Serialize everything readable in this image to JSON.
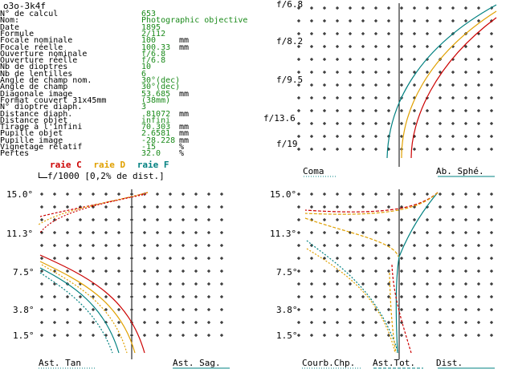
{
  "title": "o3o-3k4f",
  "parameters": [
    {
      "label": "N° de calcul",
      "value": "653",
      "unit": ""
    },
    {
      "label": "Nom:",
      "value": "Photographic objective",
      "unit": ""
    },
    {
      "label": "Date",
      "value": "1895",
      "unit": ""
    },
    {
      "label": "Formule",
      "value": "2/112",
      "unit": ""
    },
    {
      "label": "Focale nominale",
      "value": "100",
      "unit": "mm"
    },
    {
      "label": "Focale réelle",
      "value": "100.33",
      "unit": "mm"
    },
    {
      "label": "Ouverture nominale",
      "value": "f/6.8",
      "unit": ""
    },
    {
      "label": "Ouverture réelle",
      "value": "f/6.8",
      "unit": ""
    },
    {
      "label": "Nb de dioptres",
      "value": "10",
      "unit": ""
    },
    {
      "label": "Nb de lentilles",
      "value": "6",
      "unit": ""
    },
    {
      "label": "Angle de champ nom.",
      "value": "30°(dec)",
      "unit": ""
    },
    {
      "label": "Angle de champ",
      "value": "30°(dec)",
      "unit": ""
    },
    {
      "label": "Diagonale image",
      "value": "53.685",
      "unit": "mm"
    },
    {
      "label": "Format couvert 31x45mm",
      "value": "(38mm)",
      "unit": ""
    },
    {
      "label": "N° dioptre diaph.",
      "value": "3",
      "unit": ""
    },
    {
      "label": "Distance diaph.",
      "value": ".81072",
      "unit": "mm"
    },
    {
      "label": "Distance objet",
      "value": "infini",
      "unit": ""
    },
    {
      "label": "Tirage à l'infini",
      "value": "70.303",
      "unit": "mm"
    },
    {
      "label": "Pupille objet",
      "value": "2.6581",
      "unit": "mm"
    },
    {
      "label": "Pupille image",
      "value": "-28.228",
      "unit": "mm"
    },
    {
      "label": "Vignetage relatif",
      "value": "-15",
      "unit": "%"
    },
    {
      "label": "Pertes",
      "value": "32.0",
      "unit": "%"
    }
  ],
  "legend": {
    "raie_c": "raie C",
    "raie_d": "raie D",
    "raie_f": "raie F",
    "scale": "f/1000 [0,2% de dist.]"
  },
  "colors": {
    "raie_c": "#cc0000",
    "raie_d": "#e0a000",
    "raie_f": "#008080",
    "grid": "#000000",
    "value": "#1a8a1a"
  },
  "panels": {
    "aberration": {
      "y_labels": [
        "f/6.8",
        "f/8.2",
        "f/9.5",
        "f/13.6",
        "f/19"
      ],
      "x_labels": [
        "Coma",
        "Ab. Sphé."
      ]
    },
    "astig": {
      "y_labels": [
        "15.0°",
        "11.3°",
        "7.5°",
        "3.8°",
        "1.5°"
      ],
      "x_labels": [
        "Ast. Tan",
        "Ast. Sag."
      ]
    },
    "field": {
      "y_labels": [
        "15.0°",
        "11.3°",
        "7.5°",
        "3.8°",
        "1.5°"
      ],
      "x_labels": [
        "Courb.Chp.",
        "Ast.Tot.",
        "Dist."
      ]
    }
  }
}
